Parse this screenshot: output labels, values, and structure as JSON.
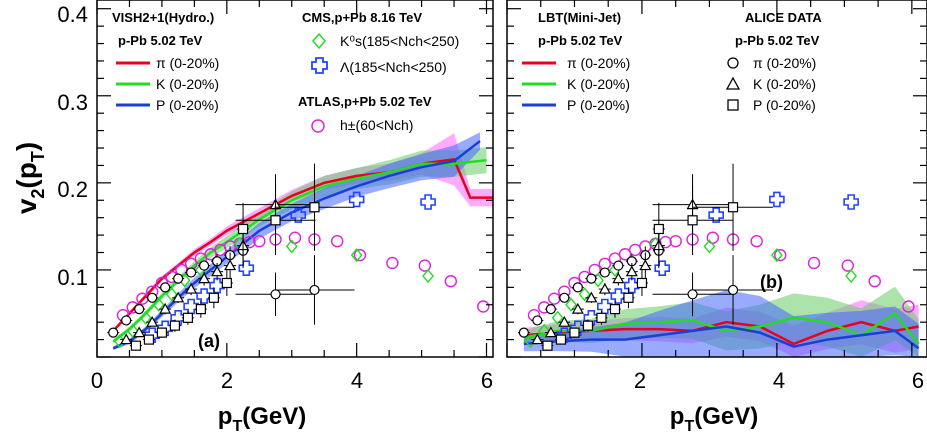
{
  "chart_data": [
    {
      "type": "line",
      "panel_label": "(a)",
      "xlabel": "p_T(GeV)",
      "ylabel": "v_2(p_T)",
      "xlim": [
        0,
        6.1
      ],
      "ylim": [
        0,
        0.41
      ],
      "x_ticks": [
        "0",
        "2",
        "4",
        "6"
      ],
      "y_ticks": [
        "0.1",
        "0.2",
        "0.3",
        "0.4"
      ],
      "legend_left": {
        "header": [
          "VISH2+1(Hydro.)",
          "p-Pb 5.02 TeV"
        ],
        "entries": [
          "π (0-20%)",
          "K (0-20%)",
          "P (0-20%)"
        ]
      },
      "legend_right": {
        "cms_header": "CMS,p+Pb 8.16 TeV",
        "cms_entries": [
          "K⁰s(185<Nch<250)",
          "Λ(185<Nch<250)"
        ],
        "atlas_header": "ATLAS,p+Pb 5.02 TeV",
        "atlas_entries": [
          "h±(60<Nch)"
        ]
      },
      "series": [
        {
          "name": "π (0-20%)",
          "color": "#e8001c",
          "band": "#ff66ff",
          "x": [
            0.25,
            0.5,
            0.75,
            1.0,
            1.25,
            1.5,
            1.75,
            2.0,
            2.5,
            3.0,
            3.5,
            4.0,
            4.5,
            5.0,
            5.5,
            5.75,
            6.1
          ],
          "y": [
            0.03,
            0.05,
            0.07,
            0.09,
            0.105,
            0.12,
            0.132,
            0.145,
            0.165,
            0.185,
            0.2,
            0.208,
            0.212,
            0.222,
            0.227,
            0.183,
            0.183
          ],
          "err": [
            0.002,
            0.002,
            0.003,
            0.003,
            0.003,
            0.004,
            0.004,
            0.005,
            0.006,
            0.007,
            0.008,
            0.009,
            0.01,
            0.012,
            0.03,
            0.01,
            0.01
          ]
        },
        {
          "name": "K (0-20%)",
          "color": "#22dd22",
          "band": "#66cc66",
          "x": [
            0.25,
            0.5,
            0.75,
            1.0,
            1.25,
            1.5,
            1.75,
            2.0,
            2.5,
            3.0,
            3.5,
            4.0,
            4.5,
            5.0,
            5.5,
            6.0
          ],
          "y": [
            0.018,
            0.032,
            0.05,
            0.07,
            0.088,
            0.105,
            0.12,
            0.132,
            0.158,
            0.18,
            0.196,
            0.205,
            0.212,
            0.222,
            0.222,
            0.226
          ],
          "err": [
            0.002,
            0.003,
            0.003,
            0.004,
            0.004,
            0.005,
            0.006,
            0.007,
            0.008,
            0.01,
            0.012,
            0.012,
            0.014,
            0.015,
            0.015,
            0.015
          ]
        },
        {
          "name": "P (0-20%)",
          "color": "#1a3fd9",
          "band": "#4466ff",
          "x": [
            0.25,
            0.5,
            0.75,
            1.0,
            1.25,
            1.5,
            1.75,
            2.0,
            2.5,
            3.0,
            3.5,
            4.0,
            4.5,
            5.0,
            5.5,
            5.9
          ],
          "y": [
            0.01,
            0.018,
            0.032,
            0.05,
            0.068,
            0.085,
            0.1,
            0.115,
            0.145,
            0.166,
            0.182,
            0.196,
            0.208,
            0.218,
            0.225,
            0.248
          ],
          "err": [
            0.002,
            0.003,
            0.003,
            0.004,
            0.005,
            0.006,
            0.007,
            0.008,
            0.009,
            0.01,
            0.012,
            0.012,
            0.014,
            0.015,
            0.018,
            0.01
          ]
        }
      ]
    },
    {
      "type": "line",
      "panel_label": "(b)",
      "xlabel": "p_T(GeV)",
      "xlim": [
        0,
        6.1
      ],
      "ylim": [
        0,
        0.41
      ],
      "x_ticks": [
        "2",
        "4",
        "6"
      ],
      "legend_left": {
        "header": [
          "LBT(Mini-Jet)",
          "p-Pb 5.02 TeV"
        ],
        "entries": [
          "π (0-20%)",
          "K (0-20%)",
          "P (0-20%)"
        ]
      },
      "legend_right": {
        "header": [
          "ALICE DATA",
          "p-Pb 5.02 TeV"
        ],
        "entries": [
          "π (0-20%)",
          "K (0-20%)",
          "P (0-20%)"
        ]
      },
      "series": [
        {
          "name": "π (0-20%)",
          "color": "#e8001c",
          "band": "#ff66ff",
          "x": [
            0.25,
            0.75,
            1.25,
            1.75,
            2.25,
            2.75,
            3.25,
            3.75,
            4.25,
            4.75,
            5.25,
            5.75,
            6.1
          ],
          "y": [
            0.025,
            0.028,
            0.03,
            0.032,
            0.032,
            0.03,
            0.04,
            0.035,
            0.015,
            0.03,
            0.04,
            0.03,
            0.035
          ],
          "err": [
            0.006,
            0.007,
            0.008,
            0.009,
            0.01,
            0.01,
            0.012,
            0.012,
            0.015,
            0.015,
            0.018,
            0.018,
            0.018
          ]
        },
        {
          "name": "K (0-20%)",
          "color": "#22dd22",
          "band": "#66cc66",
          "x": [
            0.25,
            0.75,
            1.25,
            1.75,
            2.25,
            2.75,
            3.25,
            3.75,
            4.25,
            4.75,
            5.25,
            5.75,
            6.1
          ],
          "y": [
            0.022,
            0.03,
            0.03,
            0.038,
            0.04,
            0.042,
            0.03,
            0.035,
            0.045,
            0.04,
            0.025,
            0.05,
            0.015
          ],
          "err": [
            0.006,
            0.008,
            0.01,
            0.012,
            0.013,
            0.015,
            0.016,
            0.018,
            0.02,
            0.02,
            0.022,
            0.022,
            0.02
          ]
        },
        {
          "name": "P (0-20%)",
          "color": "#1a3fd9",
          "band": "#4466ff",
          "x": [
            0.25,
            0.75,
            1.25,
            1.75,
            2.25,
            2.75,
            3.25,
            3.75,
            4.25,
            4.75,
            5.25,
            5.75,
            6.1
          ],
          "y": [
            0.015,
            0.018,
            0.02,
            0.02,
            0.025,
            0.03,
            0.035,
            0.028,
            0.012,
            0.02,
            0.025,
            0.03,
            0.01
          ],
          "err": [
            0.006,
            0.008,
            0.01,
            0.014,
            0.02,
            0.025,
            0.03,
            0.03,
            0.025,
            0.022,
            0.02,
            0.02,
            0.02
          ]
        }
      ]
    }
  ],
  "data_points": {
    "cms_k0s": {
      "color": "#22dd22",
      "x": [
        0.35,
        0.55,
        0.75,
        0.95,
        1.15,
        1.35,
        1.6,
        2.2,
        3.0,
        4.0,
        5.1
      ],
      "y": [
        0.018,
        0.03,
        0.045,
        0.06,
        0.072,
        0.088,
        0.1,
        0.13,
        0.127,
        0.117,
        0.093
      ]
    },
    "cms_lambda": {
      "color": "#2244ff",
      "x": [
        0.85,
        1.05,
        1.25,
        1.45,
        1.65,
        1.85,
        2.3,
        3.1,
        4.0,
        5.1
      ],
      "y": [
        0.025,
        0.033,
        0.045,
        0.058,
        0.07,
        0.082,
        0.102,
        0.163,
        0.181,
        0.178
      ]
    },
    "atlas_h": {
      "color": "#dd22dd",
      "x": [
        0.4,
        0.55,
        0.7,
        0.85,
        1.0,
        1.15,
        1.3,
        1.45,
        1.6,
        1.75,
        1.9,
        2.05,
        2.2,
        2.35,
        2.5,
        2.75,
        3.05,
        3.35,
        3.7,
        4.05,
        4.55,
        5.05,
        5.45,
        5.95
      ],
      "y": [
        0.048,
        0.057,
        0.067,
        0.075,
        0.085,
        0.092,
        0.1,
        0.107,
        0.113,
        0.118,
        0.123,
        0.127,
        0.13,
        0.132,
        0.133,
        0.135,
        0.137,
        0.135,
        0.133,
        0.117,
        0.108,
        0.105,
        0.087,
        0.058
      ]
    },
    "alice_pi": {
      "x": [
        0.25,
        0.45,
        0.65,
        0.85,
        1.05,
        1.25,
        1.45,
        1.65,
        1.85,
        2.05,
        2.25,
        2.75,
        3.35
      ],
      "y": [
        0.028,
        0.042,
        0.055,
        0.068,
        0.08,
        0.09,
        0.097,
        0.105,
        0.11,
        0.117,
        0.122,
        0.072,
        0.077
      ],
      "err": [
        0.003,
        0.003,
        0.003,
        0.004,
        0.004,
        0.004,
        0.005,
        0.006,
        0.008,
        0.01,
        0.02,
        0.025,
        0.04
      ]
    },
    "alice_k": {
      "x": [
        0.45,
        0.65,
        0.85,
        1.05,
        1.25,
        1.45,
        1.65,
        1.85,
        2.05,
        2.25,
        2.75
      ],
      "y": [
        0.02,
        0.028,
        0.04,
        0.055,
        0.068,
        0.078,
        0.09,
        0.098,
        0.105,
        0.128,
        0.175
      ],
      "err": [
        0.004,
        0.004,
        0.005,
        0.006,
        0.006,
        0.007,
        0.008,
        0.01,
        0.015,
        0.02,
        0.035
      ]
    },
    "alice_p": {
      "x": [
        0.6,
        0.8,
        1.0,
        1.2,
        1.4,
        1.6,
        1.8,
        2.0,
        2.25,
        2.75,
        3.35
      ],
      "y": [
        0.013,
        0.02,
        0.028,
        0.036,
        0.045,
        0.055,
        0.068,
        0.085,
        0.147,
        0.157,
        0.172
      ],
      "err": [
        0.004,
        0.005,
        0.006,
        0.007,
        0.008,
        0.01,
        0.012,
        0.015,
        0.03,
        0.04,
        0.05
      ]
    }
  }
}
